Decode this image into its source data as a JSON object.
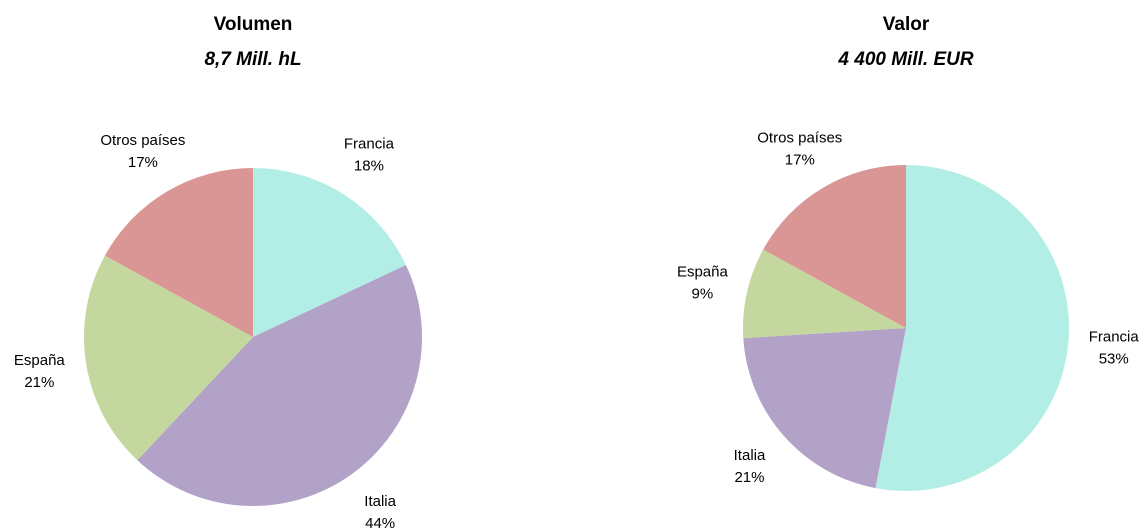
{
  "chart_data": [
    {
      "type": "pie",
      "title": "Volumen",
      "subtitle": "8,7 Mill. hL",
      "categories": [
        "Francia",
        "Italia",
        "España",
        "Otros países"
      ],
      "values": [
        18,
        44,
        21,
        17
      ],
      "value_labels": [
        "18%",
        "44%",
        "21%",
        "17%"
      ],
      "colors": [
        "#b2eee6",
        "#b3a2c8",
        "#c4d79e",
        "#da9694"
      ]
    },
    {
      "type": "pie",
      "title": "Valor",
      "subtitle": "4 400 Mill. EUR",
      "categories": [
        "Francia",
        "Italia",
        "España",
        "Otros países"
      ],
      "values": [
        53,
        21,
        9,
        17
      ],
      "value_labels": [
        "53%",
        "21%",
        "9%",
        "17%"
      ],
      "colors": [
        "#b2eee6",
        "#b3a2c8",
        "#c4d79e",
        "#da9694"
      ]
    }
  ]
}
